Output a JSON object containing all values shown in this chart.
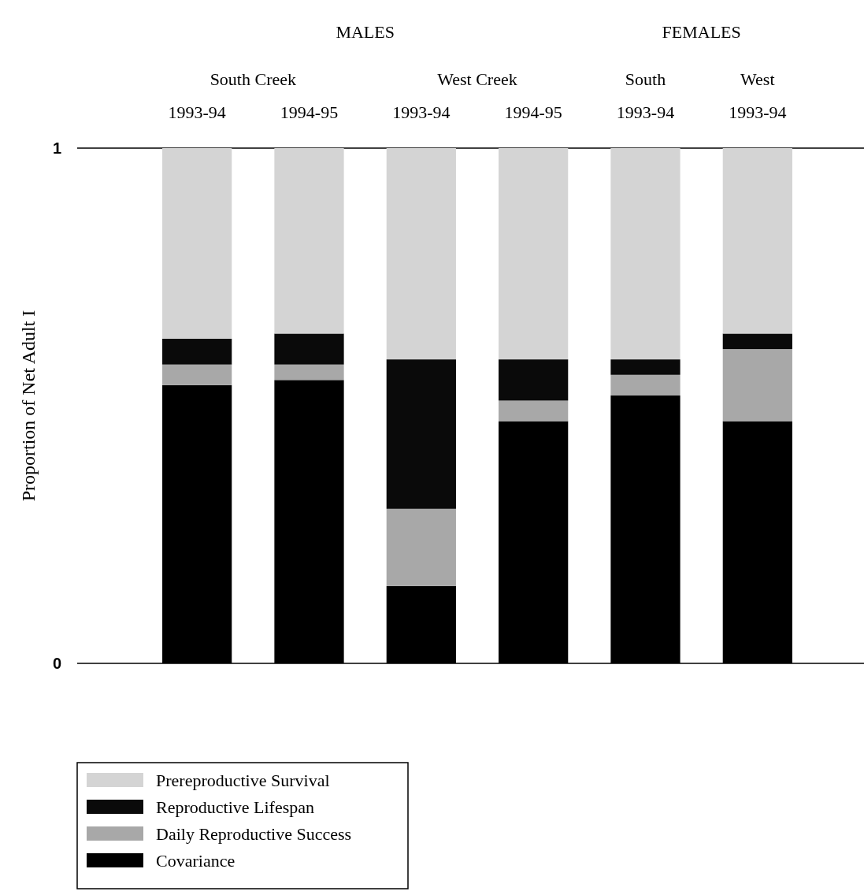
{
  "chart_data": {
    "type": "bar",
    "stacked": true,
    "ylabel": "Proportion of Net Adult I",
    "categories": [
      "1993-94",
      "1994-95",
      "1993-94",
      "1994-95",
      "1993-94",
      "1993-94"
    ],
    "series": [
      {
        "name": "Covariance",
        "color": "#000000",
        "values": [
          0.54,
          0.55,
          0.15,
          0.47,
          0.52,
          0.47
        ]
      },
      {
        "name": "Daily Reproductive Success",
        "color": "#a8a8a8",
        "values": [
          0.04,
          0.03,
          0.15,
          0.04,
          0.04,
          0.14
        ]
      },
      {
        "name": "Reproductive Lifespan",
        "color": "#0a0a0a",
        "values": [
          0.05,
          0.06,
          0.29,
          0.08,
          0.03,
          0.03
        ]
      },
      {
        "name": "Prereproductive Survival",
        "color": "#d4d4d4",
        "values": [
          0.37,
          0.36,
          0.41,
          0.41,
          0.41,
          0.36
        ]
      }
    ],
    "ylim": [
      0,
      1
    ],
    "yticks": [
      0,
      1
    ],
    "legend": "bottom left",
    "annotations": [
      "MALES",
      "FEMALES",
      "South Creek",
      "West Creek",
      "South",
      "West"
    ]
  }
}
